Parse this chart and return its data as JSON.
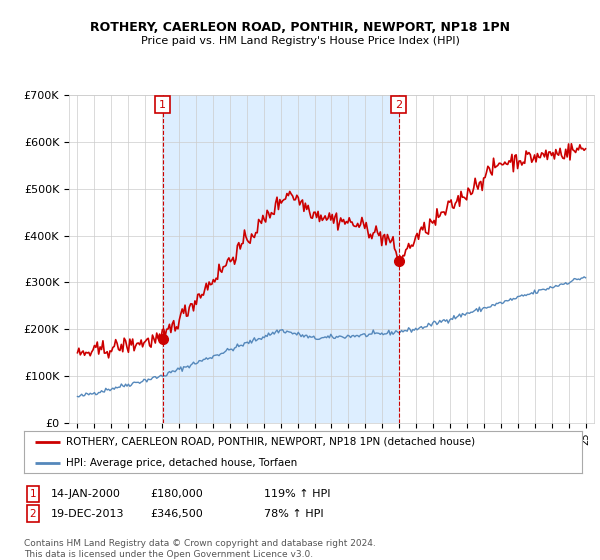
{
  "title": "ROTHERY, CAERLEON ROAD, PONTHIR, NEWPORT, NP18 1PN",
  "subtitle": "Price paid vs. HM Land Registry's House Price Index (HPI)",
  "ylim": [
    0,
    700000
  ],
  "yticks": [
    0,
    100000,
    200000,
    300000,
    400000,
    500000,
    600000,
    700000
  ],
  "ytick_labels": [
    "£0",
    "£100K",
    "£200K",
    "£300K",
    "£400K",
    "£500K",
    "£600K",
    "£700K"
  ],
  "red_color": "#cc0000",
  "blue_color": "#5588bb",
  "fill_color": "#ddeeff",
  "vline_color": "#cc0000",
  "sale1_date_num": 2000.04,
  "sale1_price": 180000,
  "sale2_date_num": 2013.97,
  "sale2_price": 346500,
  "legend1_label": "ROTHERY, CAERLEON ROAD, PONTHIR, NEWPORT, NP18 1PN (detached house)",
  "legend2_label": "HPI: Average price, detached house, Torfaen",
  "sale1_date_str": "14-JAN-2000",
  "sale1_price_str": "£180,000",
  "sale1_hpi_str": "119% ↑ HPI",
  "sale2_date_str": "19-DEC-2013",
  "sale2_price_str": "£346,500",
  "sale2_hpi_str": "78% ↑ HPI",
  "footnote": "Contains HM Land Registry data © Crown copyright and database right 2024.\nThis data is licensed under the Open Government Licence v3.0.",
  "background_color": "#ffffff",
  "grid_color": "#cccccc",
  "xlim_left": 1994.5,
  "xlim_right": 2025.5
}
